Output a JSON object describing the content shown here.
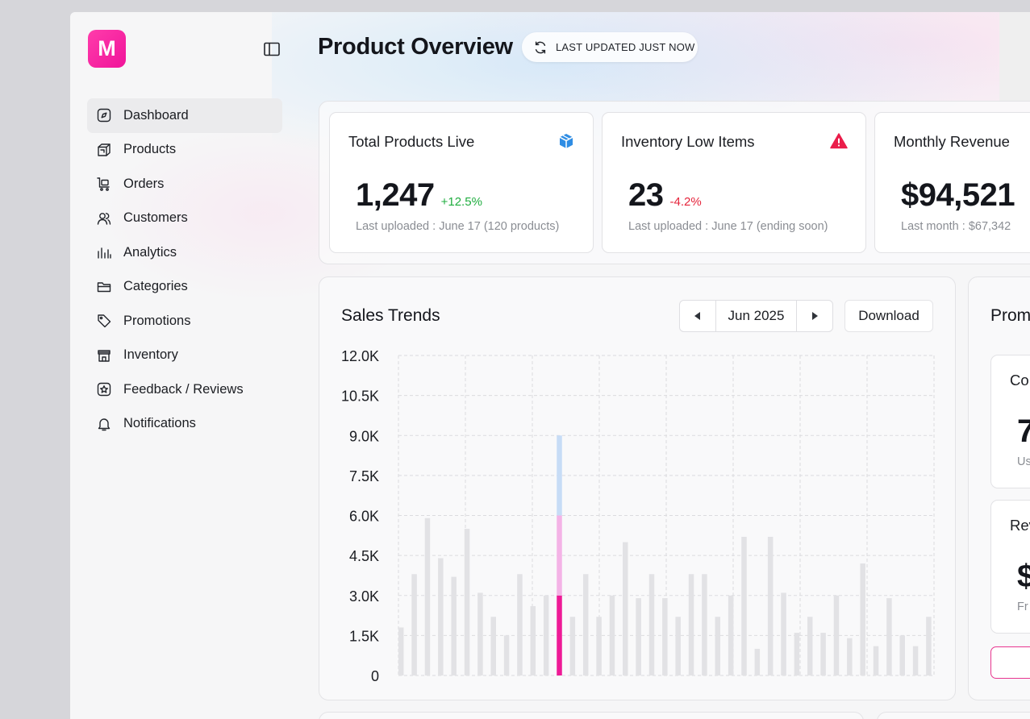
{
  "app": {
    "logo_letter": "M",
    "brand_color": "#f0149a"
  },
  "sidebar": {
    "items": [
      {
        "label": "Dashboard",
        "icon": "compass-icon",
        "active": true
      },
      {
        "label": "Products",
        "icon": "box-icon",
        "active": false
      },
      {
        "label": "Orders",
        "icon": "cart-icon",
        "active": false
      },
      {
        "label": "Customers",
        "icon": "users-icon",
        "active": false
      },
      {
        "label": "Analytics",
        "icon": "bar-chart-icon",
        "active": false
      },
      {
        "label": "Categories",
        "icon": "folder-icon",
        "active": false
      },
      {
        "label": "Promotions",
        "icon": "tag-icon",
        "active": false
      },
      {
        "label": "Inventory",
        "icon": "store-icon",
        "active": false
      },
      {
        "label": "Feedback / Reviews",
        "icon": "star-badge-icon",
        "active": false
      },
      {
        "label": "Notifications",
        "icon": "bell-icon",
        "active": false
      }
    ]
  },
  "header": {
    "title": "Product Overview",
    "updated_label": "LAST UPDATED JUST NOW"
  },
  "stats": [
    {
      "title": "Total Products Live",
      "value": "1,247",
      "change": "+12.5%",
      "trend": "up",
      "sub": "Last uploaded : June 17 (120 products)",
      "icon": "package-icon"
    },
    {
      "title": "Inventory Low Items",
      "value": "23",
      "change": "-4.2%",
      "trend": "down",
      "sub": "Last uploaded : June 17 (ending soon)",
      "icon": "warning-icon"
    },
    {
      "title": "Monthly Revenue",
      "value": "$94,521",
      "change": "",
      "trend": "up",
      "sub": "Last month : $67,342",
      "icon": ""
    }
  ],
  "sales": {
    "title": "Sales Trends",
    "month": "Jun 2025",
    "download_label": "Download"
  },
  "promotions": {
    "title": "Prom",
    "cards": [
      {
        "title": "Co",
        "value": "7",
        "sub": "Us"
      },
      {
        "title": "Rev",
        "value": "$",
        "sub": "Fr"
      }
    ]
  },
  "chart_data": {
    "type": "bar",
    "ylim": [
      0,
      12000
    ],
    "y_ticks": [
      "0",
      "1.5K",
      "3.0K",
      "4.5K",
      "6.0K",
      "7.5K",
      "9.0K",
      "10.5K",
      "12.0K"
    ],
    "grid": true,
    "values": [
      1800,
      3800,
      5900,
      4400,
      3700,
      5500,
      3100,
      2200,
      1500,
      3800,
      2600,
      3000,
      9000,
      2200,
      3800,
      2200,
      3000,
      5000,
      2900,
      3800,
      2900,
      2200,
      3800,
      3800,
      2200,
      3000,
      5200,
      1000,
      5200,
      3100,
      1600,
      2200,
      1600,
      3000,
      1400,
      4200,
      1100,
      2900,
      1500,
      1100,
      2200
    ],
    "highlight_index": 12,
    "highlight_segments": [
      3000,
      3000,
      3000
    ],
    "colors": {
      "bar": "#e2e2e5",
      "seg1": "#ee1a96",
      "seg2": "#f4b3e6",
      "seg3": "#c7dcf6",
      "grid": "#dcdcdf"
    }
  }
}
